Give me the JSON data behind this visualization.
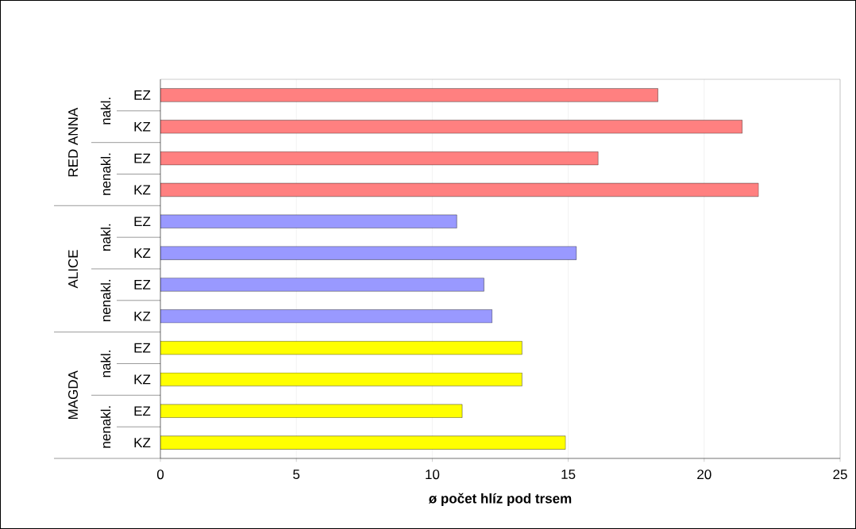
{
  "chart_data": {
    "type": "bar",
    "orientation": "horizontal",
    "xlabel": "ø počet hlíz pod trsem",
    "categories": [
      "EZ",
      "KZ",
      "EZ",
      "KZ",
      "EZ",
      "KZ",
      "EZ",
      "KZ",
      "EZ",
      "KZ",
      "EZ",
      "KZ"
    ],
    "values": [
      18.3,
      21.4,
      16.1,
      22.0,
      10.9,
      15.3,
      11.9,
      12.2,
      13.3,
      13.3,
      11.1,
      14.9
    ],
    "colors": [
      "#ff8080",
      "#ff8080",
      "#ff8080",
      "#ff8080",
      "#9999ff",
      "#9999ff",
      "#9999ff",
      "#9999ff",
      "#ffff00",
      "#ffff00",
      "#ffff00",
      "#ffff00"
    ],
    "xlim": [
      0,
      25
    ],
    "xticks": [
      0,
      5,
      10,
      15,
      20,
      25
    ],
    "grid": "x",
    "annotations": [
      "nakl.",
      "nenakl.",
      "nakl.",
      "nenakl.",
      "nakl.",
      "nenakl.",
      "RED ANNA",
      "ALICE",
      "MAGDA"
    ]
  }
}
